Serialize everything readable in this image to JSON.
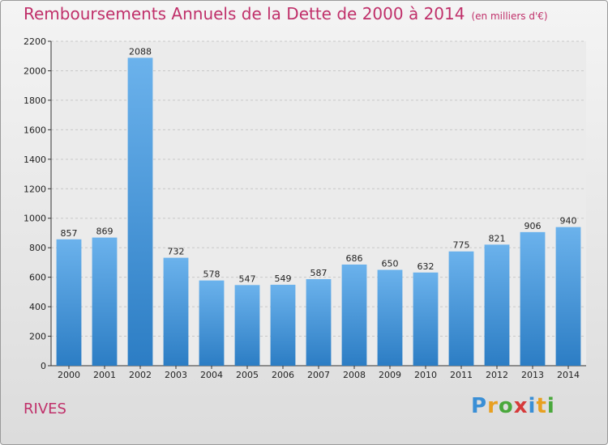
{
  "header": {
    "title": "Remboursements Annuels de la Dette de 2000 à 2014",
    "subtitle": "(en milliers d'€)"
  },
  "footer": {
    "place": "RIVES",
    "logo_letters": [
      "P",
      "r",
      "o",
      "x",
      "i",
      "t",
      "i"
    ],
    "logo_colors": [
      "#3a8fd6",
      "#e8a020",
      "#4aa83c",
      "#d63a3a",
      "#3a8fd6",
      "#e8a020",
      "#4aa83c"
    ]
  },
  "chart_data": {
    "type": "bar",
    "categories": [
      "2000",
      "2001",
      "2002",
      "2003",
      "2004",
      "2005",
      "2006",
      "2007",
      "2008",
      "2009",
      "2010",
      "2011",
      "2012",
      "2013",
      "2014"
    ],
    "values": [
      857,
      869,
      2088,
      732,
      578,
      547,
      549,
      587,
      686,
      650,
      632,
      775,
      821,
      906,
      940
    ],
    "title": "Remboursements Annuels de la Dette de 2000 à 2014",
    "xlabel": "",
    "ylabel": "",
    "ylim": [
      0,
      2200
    ],
    "yticks": [
      0,
      200,
      400,
      600,
      800,
      1000,
      1200,
      1400,
      1600,
      1800,
      2000,
      2200
    ],
    "grid": true,
    "colors": {
      "bar_light": "#6bb2ec",
      "bar_dark": "#2c7dc4",
      "grid": "#c8c8c8",
      "title": "#c0306a"
    }
  }
}
